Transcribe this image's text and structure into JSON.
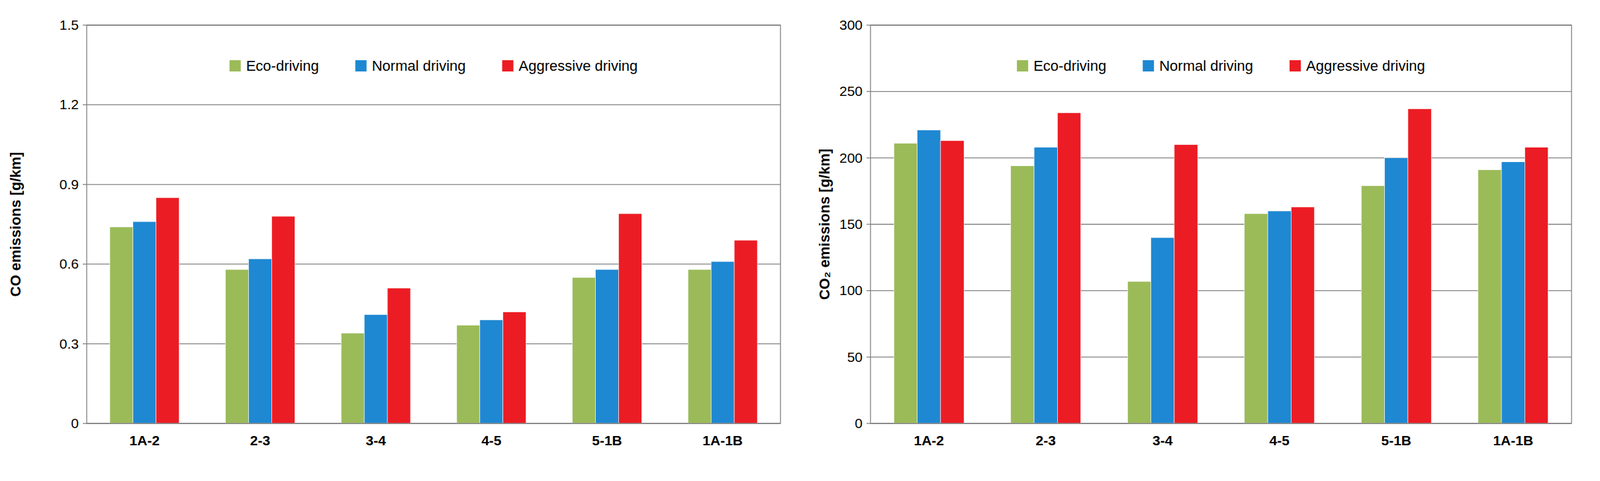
{
  "chart_data": [
    {
      "type": "bar",
      "y_label": "CO emissions [g/km]",
      "categories": [
        "1A-2",
        "2-3",
        "3-4",
        "4-5",
        "5-1B",
        "1A-1B"
      ],
      "series": [
        {
          "name": "Eco-driving",
          "color": "#9bbb59",
          "values": [
            0.74,
            0.58,
            0.34,
            0.37,
            0.55,
            0.58
          ]
        },
        {
          "name": "Normal driving",
          "color": "#1f88d2",
          "values": [
            0.76,
            0.62,
            0.41,
            0.39,
            0.58,
            0.61
          ]
        },
        {
          "name": "Aggressive driving",
          "color": "#ec1c24",
          "values": [
            0.85,
            0.78,
            0.51,
            0.42,
            0.79,
            0.69
          ]
        }
      ],
      "ylim": [
        0,
        1.5
      ],
      "yticks": [
        0,
        0.3,
        0.6,
        0.9,
        1.2,
        1.5
      ],
      "grid": true,
      "legend": "top"
    },
    {
      "type": "bar",
      "y_label": "CO₂ emissions [g/km]",
      "categories": [
        "1A-2",
        "2-3",
        "3-4",
        "4-5",
        "5-1B",
        "1A-1B"
      ],
      "series": [
        {
          "name": "Eco-driving",
          "color": "#9bbb59",
          "values": [
            211,
            194,
            107,
            158,
            179,
            191
          ]
        },
        {
          "name": "Normal driving",
          "color": "#1f88d2",
          "values": [
            221,
            208,
            140,
            160,
            200,
            197
          ]
        },
        {
          "name": "Aggressive driving",
          "color": "#ec1c24",
          "values": [
            213,
            234,
            210,
            163,
            237,
            208
          ]
        }
      ],
      "ylim": [
        0,
        300
      ],
      "yticks": [
        0,
        50,
        100,
        150,
        200,
        250,
        300
      ],
      "grid": true,
      "legend": "top"
    }
  ]
}
